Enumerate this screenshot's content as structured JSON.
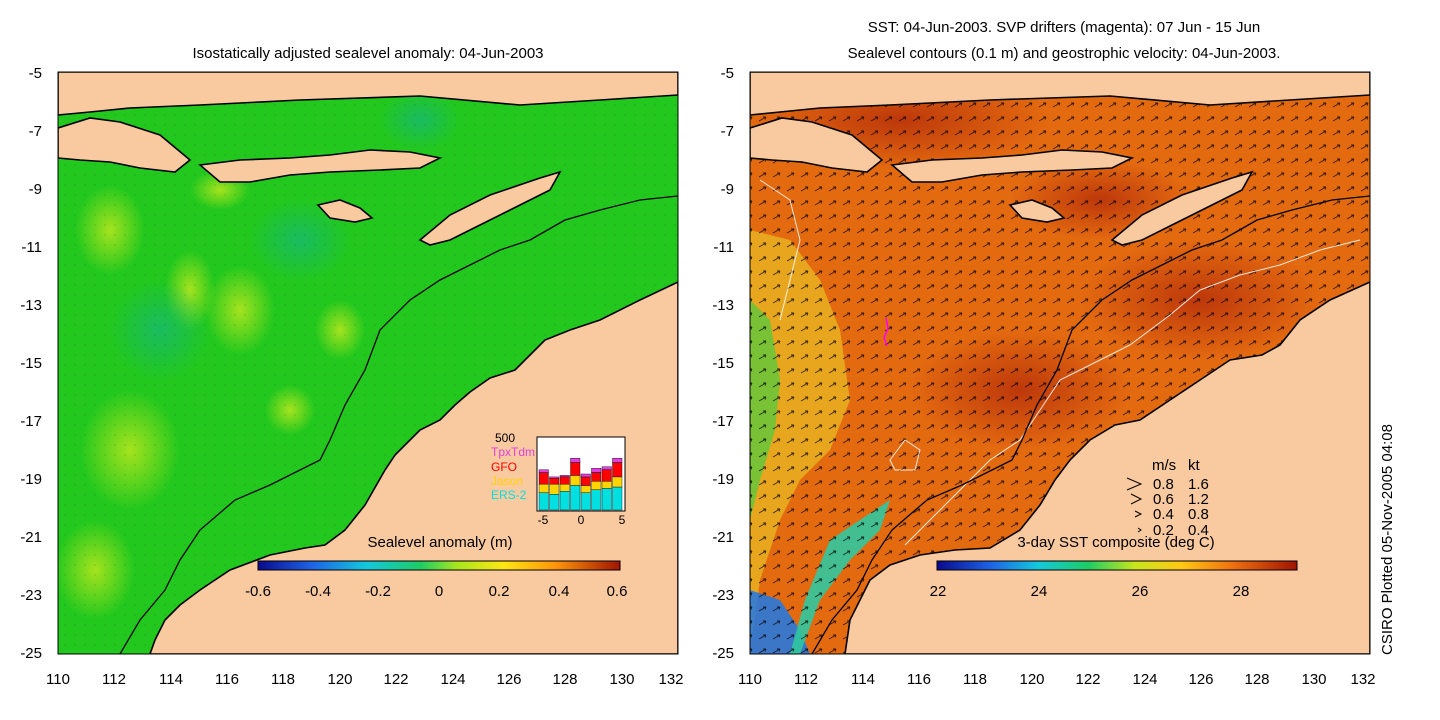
{
  "left_panel": {
    "title": "Isostatically adjusted sealevel anomaly: 04-Jun-2003",
    "y_ticks": [
      "-5",
      "-7",
      "-9",
      "-11",
      "-13",
      "-15",
      "-17",
      "-19",
      "-21",
      "-23",
      "-25"
    ],
    "x_ticks": [
      "110",
      "112",
      "114",
      "116",
      "118",
      "120",
      "122",
      "124",
      "126",
      "128",
      "130",
      "132"
    ],
    "colorbar": {
      "label": "Sealevel anomaly (m)",
      "ticks": [
        "-0.6",
        "-0.4",
        "-0.2",
        "0",
        "0.2",
        "0.4",
        "0.6"
      ]
    },
    "histogram": {
      "max_label": "500",
      "x_ticks": [
        "-5",
        "0",
        "5"
      ],
      "legend": [
        {
          "name": "TpxTdm",
          "color": "#e040e0"
        },
        {
          "name": "GFO",
          "color": "#ff0000"
        },
        {
          "name": "Jason",
          "color": "#ffd400"
        },
        {
          "name": "ERS-2",
          "color": "#00e0e0"
        }
      ],
      "bars": [
        {
          "ers2": 120,
          "jason": 60,
          "gfo": 80,
          "tpx": 20
        },
        {
          "ers2": 110,
          "jason": 70,
          "gfo": 40,
          "tpx": 10
        },
        {
          "ers2": 130,
          "jason": 50,
          "gfo": 50,
          "tpx": 10
        },
        {
          "ers2": 170,
          "jason": 70,
          "gfo": 90,
          "tpx": 30
        },
        {
          "ers2": 120,
          "jason": 50,
          "gfo": 60,
          "tpx": 20
        },
        {
          "ers2": 140,
          "jason": 60,
          "gfo": 60,
          "tpx": 30
        },
        {
          "ers2": 150,
          "jason": 50,
          "gfo": 80,
          "tpx": 20
        },
        {
          "ers2": 160,
          "jason": 70,
          "gfo": 100,
          "tpx": 30
        }
      ]
    }
  },
  "right_panel": {
    "title_line1": "SST: 04-Jun-2003. SVP drifters (magenta): 07 Jun - 15 Jun",
    "title_line2": "Sealevel contours (0.1 m) and geostrophic velocity: 04-Jun-2003.",
    "y_ticks": [
      "-5",
      "-7",
      "-9",
      "-11",
      "-13",
      "-15",
      "-17",
      "-19",
      "-21",
      "-23",
      "-25"
    ],
    "x_ticks": [
      "110",
      "112",
      "114",
      "116",
      "118",
      "120",
      "122",
      "124",
      "126",
      "128",
      "130",
      "132"
    ],
    "colorbar": {
      "label": "3-day SST composite (deg C)",
      "ticks": [
        "22",
        "24",
        "26",
        "28"
      ]
    },
    "velocity_legend": {
      "header_ms": "m/s",
      "header_kt": "kt",
      "rows": [
        {
          "ms": "0.8",
          "kt": "1.6"
        },
        {
          "ms": "0.6",
          "kt": "1.2"
        },
        {
          "ms": "0.4",
          "kt": "0.8"
        },
        {
          "ms": "0.2",
          "kt": "0.4"
        }
      ]
    }
  },
  "credit": "CSIRO Plotted 05-Nov-2005 04:08",
  "colors": {
    "land": "#f9c9a0",
    "ocean_green": "#22c81e",
    "sst_warm": "#c43a0c",
    "sst_orange": "#e46a10"
  }
}
